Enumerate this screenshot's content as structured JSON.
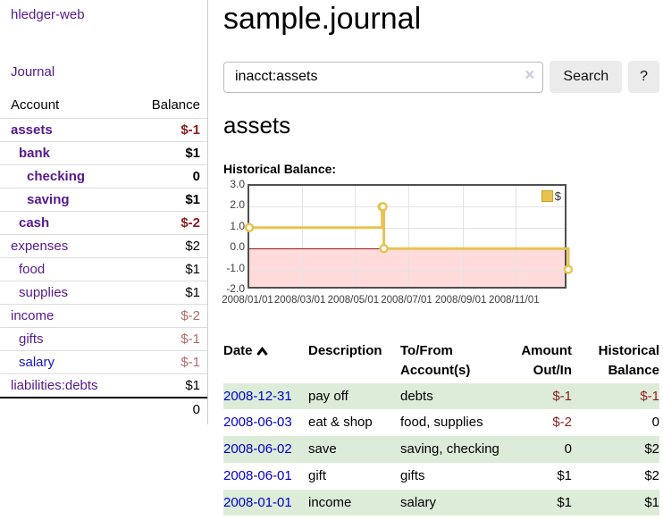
{
  "theme": {
    "purple": "#551a8b",
    "blue": "#1414cc",
    "negative": "#8e1b1b",
    "negative_muted": "#b06868",
    "row_green": "#ddecd9",
    "chart_gold": "#e8c34f",
    "chart_pink": "#ffdbdb",
    "chart_zero_line": "#8b1a1a"
  },
  "app": {
    "title": "hledger-web"
  },
  "sidebar": {
    "journal_label": "Journal",
    "table": {
      "account_header": "Account",
      "balance_header": "Balance",
      "accounts": [
        {
          "name": "assets",
          "depth": 0,
          "balance": "$-1",
          "bold": true,
          "neg": "strong"
        },
        {
          "name": "bank",
          "depth": 1,
          "balance": "$1",
          "bold": true
        },
        {
          "name": "checking",
          "depth": 2,
          "balance": "0",
          "bold": true
        },
        {
          "name": "saving",
          "depth": 2,
          "balance": "$1",
          "bold": true
        },
        {
          "name": "cash",
          "depth": 1,
          "balance": "$-2",
          "bold": true,
          "neg": "strong"
        },
        {
          "name": "expenses",
          "depth": 0,
          "balance": "$2"
        },
        {
          "name": "food",
          "depth": 1,
          "balance": "$1"
        },
        {
          "name": "supplies",
          "depth": 1,
          "balance": "$1"
        },
        {
          "name": "income",
          "depth": 0,
          "balance": "$-2",
          "neg": "muted"
        },
        {
          "name": "gifts",
          "depth": 1,
          "balance": "$-1",
          "neg": "muted"
        },
        {
          "name": "salary",
          "depth": 1,
          "balance": "$-1",
          "neg": "muted",
          "link": "blue"
        },
        {
          "name": "liabilities:debts",
          "depth": 0,
          "balance": "$1"
        }
      ],
      "total": "0"
    }
  },
  "main": {
    "title": "sample.journal",
    "search": {
      "value": "inacct:assets",
      "clear_icon": "×",
      "button_label": "Search",
      "help_label": "?"
    },
    "account_heading": "assets",
    "chart_label": "Historical Balance:"
  },
  "chart_data": {
    "type": "line",
    "style": "step",
    "title": "Historical Balance",
    "legend_label": "$",
    "legend_position": "top-right",
    "grid": true,
    "x_range": [
      "2008-01-01",
      "2008-12-31"
    ],
    "y_range": [
      -2,
      3
    ],
    "x_ticks": [
      "2008/01/01",
      "2008/03/01",
      "2008/05/01",
      "2008/07/01",
      "2008/09/01",
      "2008/11/01"
    ],
    "y_ticks": [
      3.0,
      2.0,
      1.0,
      0.0,
      -1.0,
      -2.0
    ],
    "series": [
      {
        "name": "$",
        "color": "#e8c34f",
        "points": [
          {
            "x": "2008-01-01",
            "y": 1
          },
          {
            "x": "2008-06-01",
            "y": 2
          },
          {
            "x": "2008-06-02",
            "y": 2
          },
          {
            "x": "2008-06-03",
            "y": 0
          },
          {
            "x": "2008-12-31",
            "y": -1
          }
        ]
      }
    ],
    "negative_region_shaded": true
  },
  "register": {
    "headers": [
      {
        "label": "Date",
        "align": "left",
        "sorted": "ascending"
      },
      {
        "label": "Description",
        "align": "left"
      },
      {
        "label": "To/From Account(s)",
        "align": "left"
      },
      {
        "label": "Amount Out/In",
        "align": "right"
      },
      {
        "label": "Historical Balance",
        "align": "right"
      }
    ],
    "rows": [
      {
        "date": "2008-12-31",
        "description": "pay off",
        "accounts": "debts",
        "amount": "$-1",
        "amount_neg": true,
        "balance": "$-1",
        "balance_neg": true
      },
      {
        "date": "2008-06-03",
        "description": "eat & shop",
        "accounts": "food, supplies",
        "amount": "$-2",
        "amount_neg": true,
        "balance": "0"
      },
      {
        "date": "2008-06-02",
        "description": "save",
        "accounts": "saving, checking",
        "amount": "0",
        "balance": "$2"
      },
      {
        "date": "2008-06-01",
        "description": "gift",
        "accounts": "gifts",
        "amount": "$1",
        "balance": "$2"
      },
      {
        "date": "2008-01-01",
        "description": "income",
        "accounts": "salary",
        "amount": "$1",
        "balance": "$1"
      }
    ]
  }
}
